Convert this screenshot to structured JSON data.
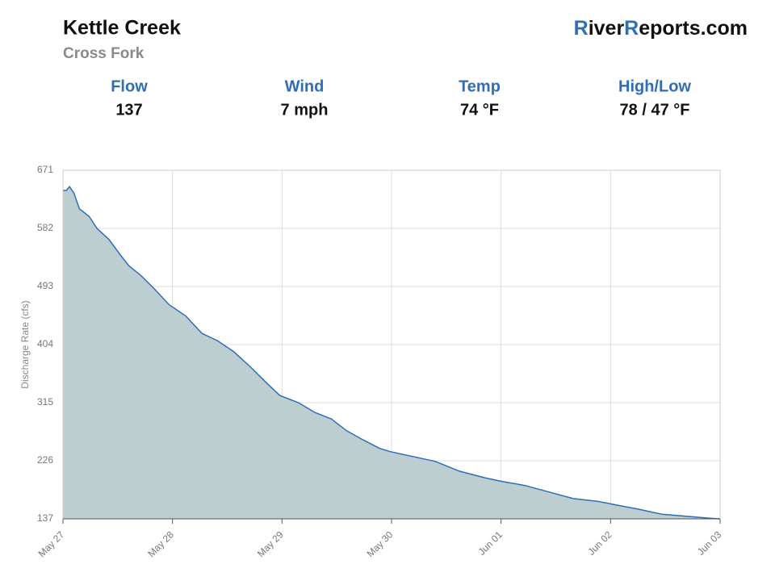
{
  "header": {
    "title": "Kettle Creek",
    "subtitle": "Cross Fork",
    "brand": [
      "R",
      "iver",
      "R",
      "eports.com"
    ]
  },
  "stats": [
    {
      "label": "Flow",
      "value": "137"
    },
    {
      "label": "Wind",
      "value": "7 mph"
    },
    {
      "label": "Temp",
      "value": "74 °F"
    },
    {
      "label": "High/Low",
      "value": "78 / 47 °F"
    }
  ],
  "chart_data": {
    "type": "area",
    "y_label": "Discharge Rate (cfs)",
    "x": [
      0,
      0.03,
      0.06,
      0.1,
      0.15,
      0.24,
      0.31,
      0.42,
      0.53,
      0.6,
      0.71,
      0.83,
      0.97,
      1.12,
      1.27,
      1.41,
      1.56,
      1.71,
      1.86,
      1.98,
      2.15,
      2.3,
      2.45,
      2.59,
      2.74,
      2.89,
      2.99,
      3.18,
      3.4,
      3.62,
      3.85,
      3.99,
      4.22,
      4.44,
      4.66,
      4.88,
      5.0,
      5.25,
      5.47,
      5.69,
      5.91,
      6.0
    ],
    "series": [
      {
        "name": "Discharge",
        "color": "#2f6db5",
        "fill": "#b9cbcf",
        "values": [
          640,
          640,
          646,
          636,
          612,
          600,
          582,
          565,
          540,
          525,
          510,
          490,
          465,
          448,
          421,
          410,
          393,
          370,
          345,
          326,
          315,
          300,
          290,
          272,
          258,
          245,
          240,
          233,
          225,
          210,
          200,
          195,
          188,
          178,
          168,
          164,
          160,
          152,
          144,
          141,
          138,
          137
        ]
      }
    ],
    "xlim": [
      0,
      6
    ],
    "xticks": [
      {
        "value": 0,
        "label": "May 27"
      },
      {
        "value": 1,
        "label": "May 28"
      },
      {
        "value": 2,
        "label": "May 29"
      },
      {
        "value": 3,
        "label": "May 30"
      },
      {
        "value": 4,
        "label": "Jun 01"
      },
      {
        "value": 5,
        "label": "Jun 02"
      },
      {
        "value": 6,
        "label": "Jun 03"
      }
    ],
    "ylim": [
      137,
      671
    ],
    "yticks": [
      137,
      226,
      315,
      404,
      493,
      582,
      671
    ],
    "grid": true
  }
}
